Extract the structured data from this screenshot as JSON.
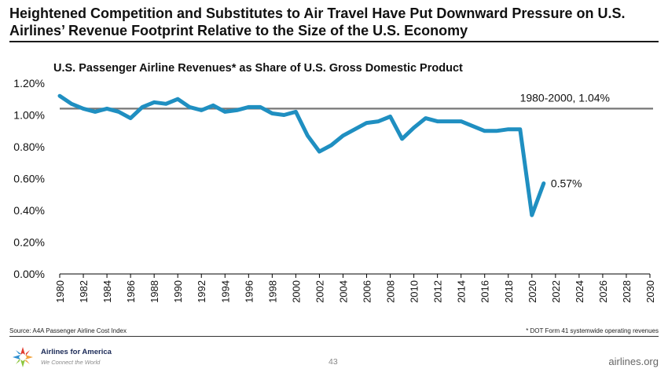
{
  "slide": {
    "headline": "Heightened Competition and Substitutes to Air Travel Have Put Downward Pressure on U.S. Airlines’ Revenue Footprint Relative to the Size of the U.S. Economy",
    "source": "Source: A4A Passenger Airline Cost Index",
    "footnote": "* DOT Form 41 systemwide operating revenues",
    "page_number": "43",
    "website": "airlines.org",
    "logo_name": "Airlines for America",
    "logo_tagline": "We Connect the World"
  },
  "chart_data": {
    "type": "line",
    "title": "U.S. Passenger Airline Revenues* as Share of U.S. Gross Domestic Product",
    "xlabel": "",
    "ylabel": "",
    "xlim": [
      1980,
      2030
    ],
    "ylim": [
      0,
      1.2
    ],
    "x_ticks": [
      1980,
      1982,
      1984,
      1986,
      1988,
      1990,
      1992,
      1994,
      1996,
      1998,
      2000,
      2002,
      2004,
      2006,
      2008,
      2010,
      2012,
      2014,
      2016,
      2018,
      2020,
      2022,
      2024,
      2026,
      2028,
      2030
    ],
    "x_tick_labels": [
      "1980",
      "1982",
      "1984",
      "1986",
      "1988",
      "1990",
      "1992",
      "1994",
      "1996",
      "1998",
      "2000",
      "2002",
      "2004",
      "2006",
      "2008",
      "2010",
      "2012",
      "2014",
      "2016",
      "2018",
      "2020",
      "2022",
      "2024",
      "2026",
      "2028",
      "2030"
    ],
    "y_ticks": [
      0,
      0.2,
      0.4,
      0.6,
      0.8,
      1.0,
      1.2
    ],
    "y_tick_labels": [
      "0.00%",
      "0.20%",
      "0.40%",
      "0.60%",
      "0.80%",
      "1.00%",
      "1.20%"
    ],
    "grid": false,
    "series": [
      {
        "x": [
          1980,
          1981,
          1982,
          1983,
          1984,
          1985,
          1986,
          1987,
          1988,
          1989,
          1990,
          1991,
          1992,
          1993,
          1994,
          1995,
          1996,
          1997,
          1998,
          1999,
          2000,
          2001,
          2002,
          2003,
          2004,
          2005,
          2006,
          2007,
          2008,
          2009,
          2010,
          2011,
          2012,
          2013,
          2014,
          2015,
          2016,
          2017,
          2018,
          2019,
          2020,
          2021
        ],
        "values": [
          1.12,
          1.07,
          1.04,
          1.02,
          1.04,
          1.02,
          0.98,
          1.05,
          1.08,
          1.07,
          1.1,
          1.05,
          1.03,
          1.06,
          1.02,
          1.03,
          1.05,
          1.05,
          1.01,
          1.0,
          1.02,
          0.87,
          0.77,
          0.81,
          0.87,
          0.91,
          0.95,
          0.96,
          0.99,
          0.85,
          0.92,
          0.98,
          0.96,
          0.96,
          0.96,
          0.93,
          0.9,
          0.9,
          0.91,
          0.91,
          0.37,
          0.57
        ],
        "color": "#1f8fc1"
      }
    ],
    "reference_line": {
      "value": 1.04,
      "label": "1980-2000, 1.04%",
      "color": "#777777"
    },
    "end_label": {
      "x": 2021,
      "value": 0.57,
      "text": "0.57%"
    }
  }
}
